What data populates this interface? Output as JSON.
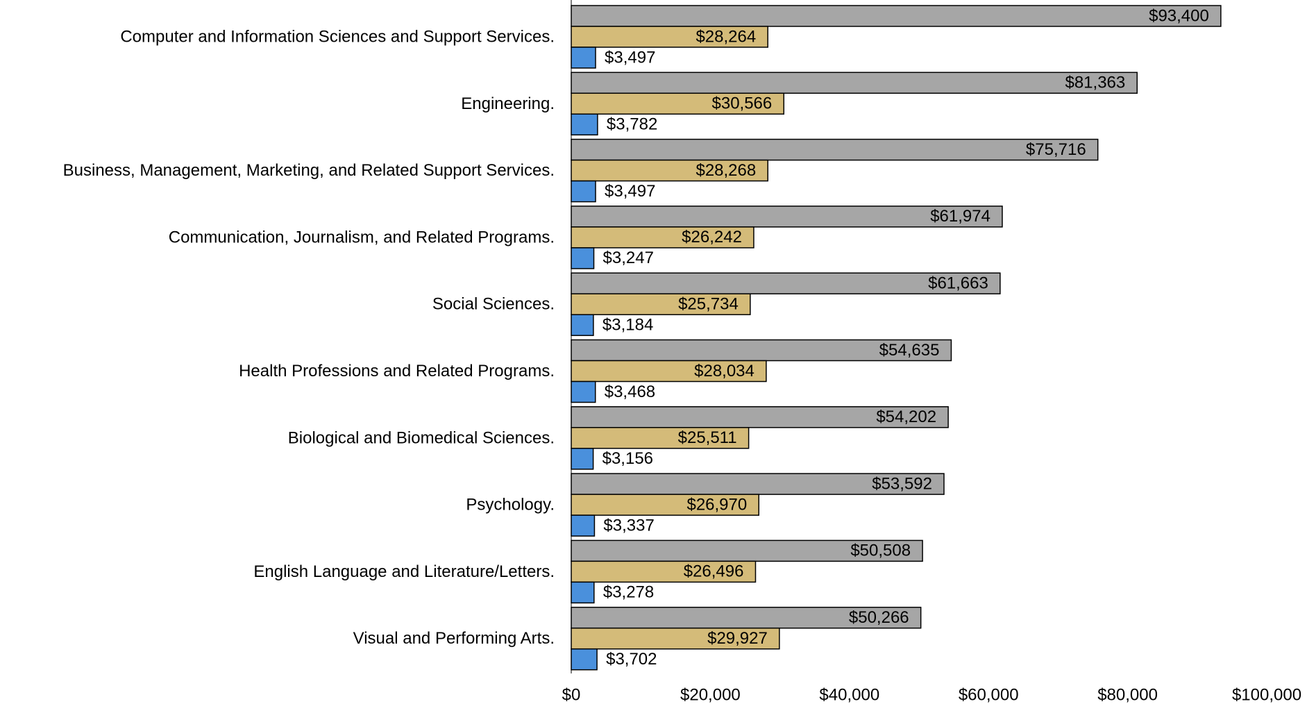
{
  "chart_data": {
    "type": "hbar",
    "categories": [
      "Computer and Information Sciences and Support Services.",
      "Engineering.",
      "Business, Management, Marketing, and Related Support Services.",
      "Communication, Journalism, and Related Programs.",
      "Social Sciences.",
      "Health Professions and Related Programs.",
      "Biological and Biomedical Sciences.",
      "Psychology.",
      "English Language and Literature/Letters.",
      "Visual and Performing Arts."
    ],
    "series": [
      {
        "color": "#a6a6a6",
        "values": [
          93400,
          81363,
          75716,
          61974,
          61663,
          54635,
          54202,
          53592,
          50508,
          50266
        ],
        "value_labels": [
          "$93,400",
          "$81,363",
          "$75,716",
          "$61,974",
          "$61,663",
          "$54,635",
          "$54,202",
          "$53,592",
          "$50,508",
          "$50,266"
        ]
      },
      {
        "color": "#d4bb79",
        "values": [
          28264,
          30566,
          28268,
          26242,
          25734,
          28034,
          25511,
          26970,
          26496,
          29927
        ],
        "value_labels": [
          "$28,264",
          "$30,566",
          "$28,268",
          "$26,242",
          "$25,734",
          "$28,034",
          "$25,511",
          "$26,970",
          "$26,496",
          "$29,927"
        ]
      },
      {
        "color": "#4a90dc",
        "values": [
          3497,
          3782,
          3497,
          3247,
          3184,
          3468,
          3156,
          3337,
          3278,
          3702
        ],
        "value_labels": [
          "$3,497",
          "$3,782",
          "$3,497",
          "$3,247",
          "$3,184",
          "$3,468",
          "$3,156",
          "$3,337",
          "$3,278",
          "$3,702"
        ]
      }
    ],
    "xlim": [
      0,
      100000
    ],
    "xticks": [
      {
        "value": 0,
        "label": "$0"
      },
      {
        "value": 20000,
        "label": "$20,000"
      },
      {
        "value": 40000,
        "label": "$40,000"
      },
      {
        "value": 60000,
        "label": "$60,000"
      },
      {
        "value": 80000,
        "label": "$80,000"
      },
      {
        "value": 100000,
        "label": "$100,000"
      }
    ],
    "grid": false
  }
}
